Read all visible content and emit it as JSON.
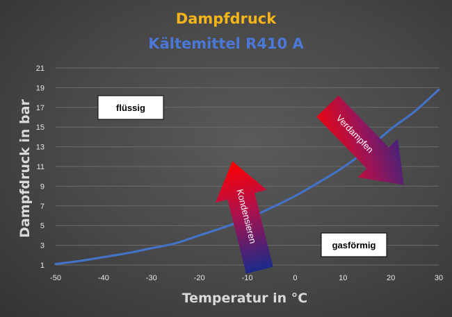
{
  "chart_data": {
    "type": "line",
    "title": "Dampfdruck",
    "subtitle": "Kältemittel R410 A",
    "xlabel": "Temperatur in °C",
    "ylabel": "Dampfdruck in bar",
    "xlim": [
      -50,
      30
    ],
    "ylim": [
      1,
      21
    ],
    "x_ticks": [
      -50,
      -40,
      -30,
      -20,
      -10,
      0,
      10,
      20,
      30
    ],
    "y_ticks": [
      1,
      3,
      5,
      7,
      9,
      11,
      13,
      15,
      17,
      19,
      21
    ],
    "grid": true,
    "series": [
      {
        "x": [
          -50,
          -45,
          -40,
          -35,
          -30,
          -25,
          -20,
          -15,
          -10,
          -5,
          0,
          5,
          10,
          15,
          20,
          25,
          30
        ],
        "values": [
          1.1,
          1.4,
          1.8,
          2.2,
          2.7,
          3.2,
          4.0,
          4.8,
          5.7,
          6.8,
          8.0,
          9.4,
          10.9,
          12.7,
          14.8,
          16.6,
          18.8
        ]
      }
    ],
    "annotations": {
      "liquid": "flüssig",
      "gas": "gasförmig",
      "condense": "Kondensieren",
      "evaporate": "Verdampfen"
    },
    "colors": {
      "title": "#f4b41a",
      "subtitle": "#4b78d6",
      "line": "#4472c4",
      "grid": "#6c6c6c",
      "arrow_start": "#ff0000",
      "arrow_end": "#1a2a8a"
    }
  }
}
